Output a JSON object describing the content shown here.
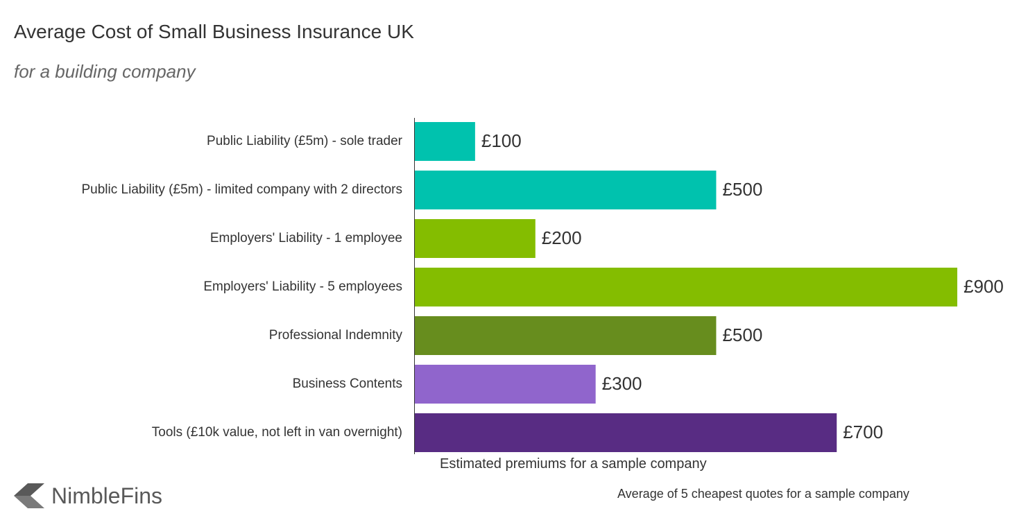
{
  "chart_data": {
    "type": "bar",
    "orientation": "horizontal",
    "title": "Average Cost of Small Business Insurance UK",
    "subtitle": "for a building company",
    "xlabel": "Estimated premiums for a sample company",
    "ylabel": "",
    "xlim": [
      0,
      900
    ],
    "grid": false,
    "categories": [
      "Public Liability (£5m) - sole trader",
      "Public Liability (£5m) - limited company with 2 directors",
      "Employers' Liability - 1 employee",
      "Employers' Liability - 5 employees",
      "Professional Indemnity",
      "Business Contents",
      "Tools (£10k value, not left in van overnight)"
    ],
    "values": [
      100,
      500,
      200,
      900,
      500,
      300,
      700
    ],
    "value_labels": [
      "£100",
      "£500",
      "£200",
      "£900",
      "£500",
      "£300",
      "£700"
    ],
    "colors": [
      "#00c2ae",
      "#00c2ae",
      "#84bd00",
      "#84bd00",
      "#678d1e",
      "#9065cc",
      "#582c83"
    ],
    "footnote": "Average of 5 cheapest quotes for a sample company"
  },
  "brand": {
    "name": "NimbleFins",
    "icon": "nimblefins-arrow-icon",
    "icon_color": "#595959"
  }
}
